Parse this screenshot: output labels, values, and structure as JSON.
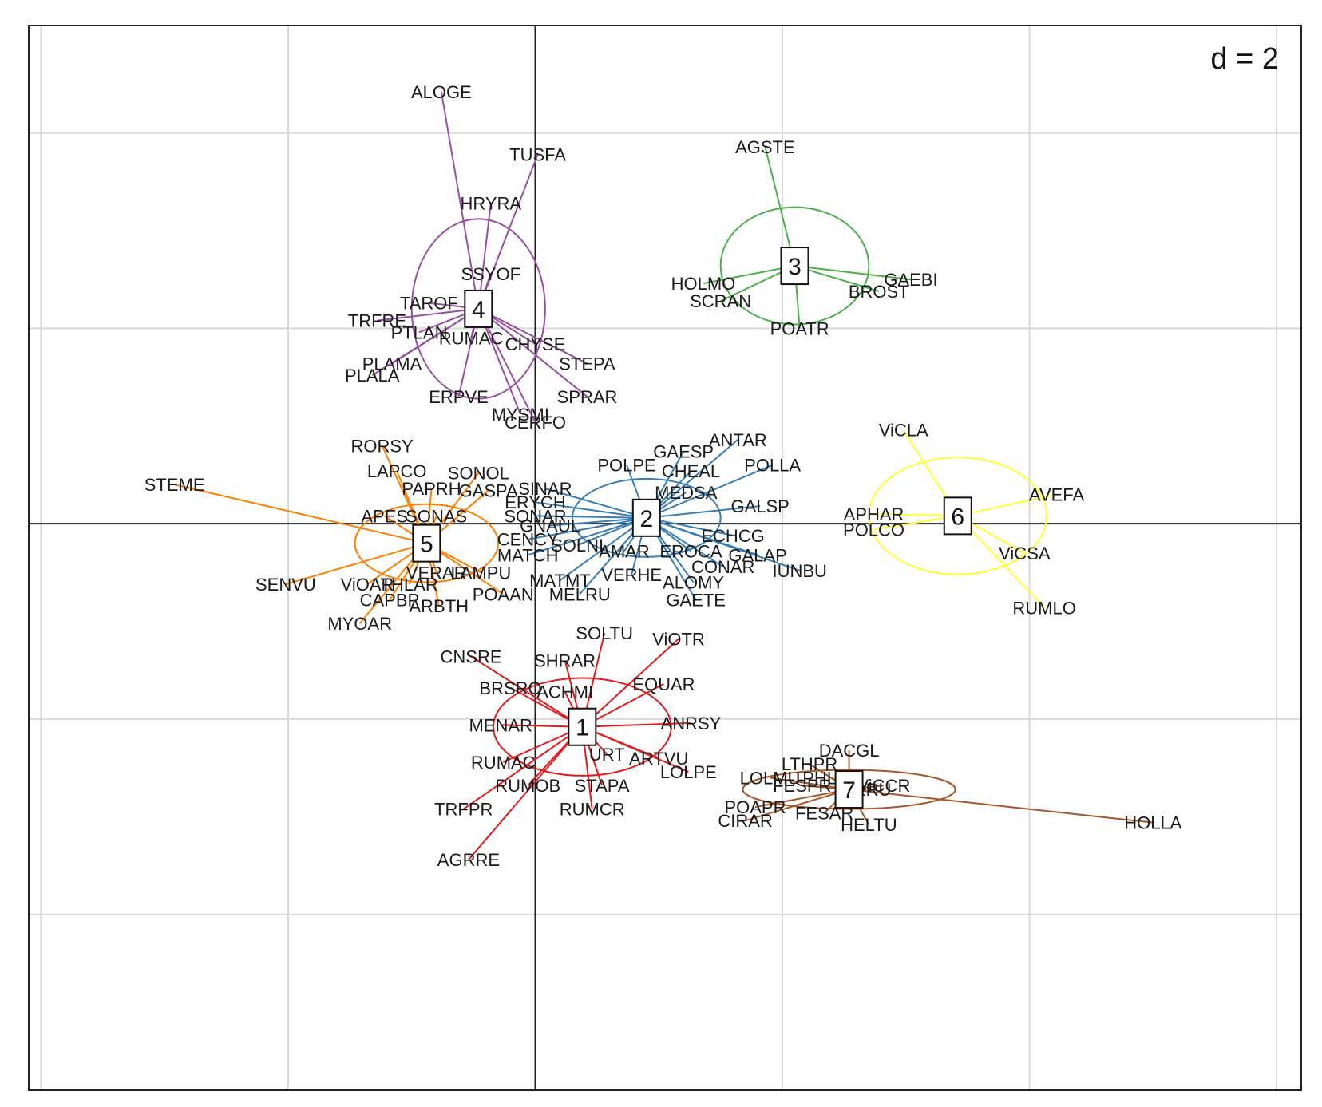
{
  "chart_data": {
    "type": "scatter",
    "title": "",
    "grid_label": "d = 2",
    "xlim": [
      -2.05,
      3.1
    ],
    "ylim": [
      -2.9,
      2.55
    ],
    "grid_step": 1,
    "xlabel": "",
    "ylabel": "",
    "groups": [
      {
        "id": "1",
        "color": "#e41a1c",
        "center": [
          0.19,
          -1.04
        ],
        "ellipse": [
          0.36,
          0.25,
          0
        ],
        "points": [
          {
            "name": "SOLTU",
            "x": 0.28,
            "y": -0.56
          },
          {
            "name": "ViOTR",
            "x": 0.58,
            "y": -0.59
          },
          {
            "name": "CNSRE",
            "x": -0.26,
            "y": -0.68
          },
          {
            "name": "SHRAR",
            "x": 0.12,
            "y": -0.7
          },
          {
            "name": "BRSRO",
            "x": -0.1,
            "y": -0.84
          },
          {
            "name": "ACHMI",
            "x": 0.12,
            "y": -0.86
          },
          {
            "name": "EQUAR",
            "x": 0.52,
            "y": -0.82
          },
          {
            "name": "MENAR",
            "x": -0.14,
            "y": -1.03
          },
          {
            "name": "ANRSY",
            "x": 0.63,
            "y": -1.02
          },
          {
            "name": "URT",
            "x": 0.29,
            "y": -1.18
          },
          {
            "name": "ARTVU",
            "x": 0.5,
            "y": -1.2
          },
          {
            "name": "LOLPE",
            "x": 0.62,
            "y": -1.27
          },
          {
            "name": "RUMAC",
            "x": -0.13,
            "y": -1.22
          },
          {
            "name": "RUMOB",
            "x": -0.03,
            "y": -1.34
          },
          {
            "name": "STAPA",
            "x": 0.27,
            "y": -1.34
          },
          {
            "name": "RUMCR",
            "x": 0.23,
            "y": -1.46
          },
          {
            "name": "TRFPR",
            "x": -0.29,
            "y": -1.46
          },
          {
            "name": "AGRRE",
            "x": -0.27,
            "y": -1.72
          }
        ]
      },
      {
        "id": "2",
        "color": "#377eb8",
        "center": [
          0.45,
          0.03
        ],
        "ellipse": [
          0.3,
          0.2,
          0
        ],
        "points": [
          {
            "name": "ANTAR",
            "x": 0.82,
            "y": 0.43
          },
          {
            "name": "GAESP",
            "x": 0.6,
            "y": 0.37
          },
          {
            "name": "POLPE",
            "x": 0.37,
            "y": 0.3
          },
          {
            "name": "CHEAL",
            "x": 0.63,
            "y": 0.27
          },
          {
            "name": "POLLA",
            "x": 0.96,
            "y": 0.3
          },
          {
            "name": "MEDSA",
            "x": 0.61,
            "y": 0.16
          },
          {
            "name": "SINAR",
            "x": 0.04,
            "y": 0.18
          },
          {
            "name": "ERYCH",
            "x": 0.0,
            "y": 0.11
          },
          {
            "name": "GALSP",
            "x": 0.91,
            "y": 0.09
          },
          {
            "name": "SONAR",
            "x": 0.0,
            "y": 0.04
          },
          {
            "name": "GNAUL",
            "x": 0.06,
            "y": -0.01
          },
          {
            "name": "CENCY",
            "x": -0.03,
            "y": -0.08
          },
          {
            "name": "ECHCG",
            "x": 0.8,
            "y": -0.06
          },
          {
            "name": "SOLNI",
            "x": 0.17,
            "y": -0.11
          },
          {
            "name": "AMAR",
            "x": 0.36,
            "y": -0.14
          },
          {
            "name": "EROCA",
            "x": 0.63,
            "y": -0.14
          },
          {
            "name": "GALAP",
            "x": 0.9,
            "y": -0.16
          },
          {
            "name": "MATCH",
            "x": -0.03,
            "y": -0.16
          },
          {
            "name": "CONAR",
            "x": 0.76,
            "y": -0.22
          },
          {
            "name": "IUNBU",
            "x": 1.07,
            "y": -0.24
          },
          {
            "name": "VERHE",
            "x": 0.39,
            "y": -0.26
          },
          {
            "name": "MATMT",
            "x": 0.1,
            "y": -0.29
          },
          {
            "name": "ALOMY",
            "x": 0.64,
            "y": -0.3
          },
          {
            "name": "MELRU",
            "x": 0.18,
            "y": -0.36
          },
          {
            "name": "GAETE",
            "x": 0.65,
            "y": -0.39
          }
        ]
      },
      {
        "id": "3",
        "color": "#4daf4a",
        "center": [
          1.05,
          1.32
        ],
        "ellipse": [
          0.3,
          0.3,
          0
        ],
        "points": [
          {
            "name": "AGSTE",
            "x": 0.93,
            "y": 1.93
          },
          {
            "name": "GAEBI",
            "x": 1.52,
            "y": 1.25
          },
          {
            "name": "BROST",
            "x": 1.39,
            "y": 1.19
          },
          {
            "name": "HOLMO",
            "x": 0.68,
            "y": 1.23
          },
          {
            "name": "SCRAN",
            "x": 0.75,
            "y": 1.14
          },
          {
            "name": "POATR",
            "x": 1.07,
            "y": 1.0
          }
        ]
      },
      {
        "id": "4",
        "color": "#984ea3",
        "center": [
          -0.23,
          1.1
        ],
        "ellipse": [
          0.27,
          0.46,
          0
        ],
        "points": [
          {
            "name": "ALOGE",
            "x": -0.38,
            "y": 2.21
          },
          {
            "name": "TUSFA",
            "x": 0.01,
            "y": 1.89
          },
          {
            "name": "HRYRA",
            "x": -0.18,
            "y": 1.64
          },
          {
            "name": "SSYOF",
            "x": -0.18,
            "y": 1.28
          },
          {
            "name": "TAROF",
            "x": -0.43,
            "y": 1.13
          },
          {
            "name": "TRFRE",
            "x": -0.64,
            "y": 1.04
          },
          {
            "name": "PTLAN",
            "x": -0.47,
            "y": 0.98
          },
          {
            "name": "RUMAC",
            "x": -0.26,
            "y": 0.95
          },
          {
            "name": "CHYSE",
            "x": 0.0,
            "y": 0.92
          },
          {
            "name": "PLAMA",
            "x": -0.58,
            "y": 0.82
          },
          {
            "name": "PLALA",
            "x": -0.66,
            "y": 0.76
          },
          {
            "name": "STEPA",
            "x": 0.21,
            "y": 0.82
          },
          {
            "name": "ERPVE",
            "x": -0.31,
            "y": 0.65
          },
          {
            "name": "SPRAR",
            "x": 0.21,
            "y": 0.65
          },
          {
            "name": "MYSMI",
            "x": -0.06,
            "y": 0.56
          },
          {
            "name": "CERFO",
            "x": 0.0,
            "y": 0.52
          }
        ]
      },
      {
        "id": "5",
        "color": "#ff7f00",
        "center": [
          -0.44,
          -0.1
        ],
        "ellipse": [
          0.29,
          0.2,
          0
        ],
        "points": [
          {
            "name": "RORSY",
            "x": -0.62,
            "y": 0.4
          },
          {
            "name": "STEME",
            "x": -1.46,
            "y": 0.2
          },
          {
            "name": "LAPCO",
            "x": -0.56,
            "y": 0.27
          },
          {
            "name": "SONOL",
            "x": -0.23,
            "y": 0.26
          },
          {
            "name": "PAPRH",
            "x": -0.42,
            "y": 0.18
          },
          {
            "name": "GASPA",
            "x": -0.19,
            "y": 0.17
          },
          {
            "name": "APES",
            "x": -0.61,
            "y": 0.04
          },
          {
            "name": "SONAS",
            "x": -0.4,
            "y": 0.04
          },
          {
            "name": "VERAR",
            "x": -0.4,
            "y": -0.25
          },
          {
            "name": "LAMPU",
            "x": -0.22,
            "y": -0.25
          },
          {
            "name": "SENVU",
            "x": -1.01,
            "y": -0.31
          },
          {
            "name": "ViOAR",
            "x": -0.68,
            "y": -0.31
          },
          {
            "name": "THLAR",
            "x": -0.51,
            "y": -0.31
          },
          {
            "name": "POAAN",
            "x": -0.13,
            "y": -0.36
          },
          {
            "name": "CAPBP",
            "x": -0.59,
            "y": -0.39
          },
          {
            "name": "ARBTH",
            "x": -0.39,
            "y": -0.42
          },
          {
            "name": "MYOAR",
            "x": -0.71,
            "y": -0.51
          }
        ]
      },
      {
        "id": "6",
        "color": "#ffff33",
        "center": [
          1.71,
          0.04
        ],
        "ellipse": [
          0.36,
          0.3,
          0
        ],
        "points": [
          {
            "name": "ViCLA",
            "x": 1.49,
            "y": 0.48
          },
          {
            "name": "AVEFA",
            "x": 2.11,
            "y": 0.15
          },
          {
            "name": "APHAR",
            "x": 1.37,
            "y": 0.05
          },
          {
            "name": "POLCO",
            "x": 1.37,
            "y": -0.03
          },
          {
            "name": "ViCSA",
            "x": 1.98,
            "y": -0.15
          },
          {
            "name": "RUMLO",
            "x": 2.06,
            "y": -0.43
          }
        ]
      },
      {
        "id": "7",
        "color": "#a65628",
        "center": [
          1.27,
          -1.36
        ],
        "ellipse": [
          0.43,
          0.1,
          0
        ],
        "points": [
          {
            "name": "DACGL",
            "x": 1.27,
            "y": -1.16
          },
          {
            "name": "LTHPR",
            "x": 1.11,
            "y": -1.23
          },
          {
            "name": "LOLMU",
            "x": 0.95,
            "y": -1.3
          },
          {
            "name": "PHLPR",
            "x": 1.2,
            "y": -1.3
          },
          {
            "name": "FESPR",
            "x": 1.08,
            "y": -1.34
          },
          {
            "name": "ViCCR",
            "x": 1.41,
            "y": -1.34
          },
          {
            "name": "ARRU",
            "x": 1.34,
            "y": -1.36
          },
          {
            "name": "POAPR",
            "x": 0.89,
            "y": -1.45
          },
          {
            "name": "FESAR",
            "x": 1.17,
            "y": -1.48
          },
          {
            "name": "CIRAR",
            "x": 0.85,
            "y": -1.52
          },
          {
            "name": "HELTU",
            "x": 1.35,
            "y": -1.54
          },
          {
            "name": "HOLLA",
            "x": 2.5,
            "y": -1.53
          }
        ]
      }
    ]
  }
}
